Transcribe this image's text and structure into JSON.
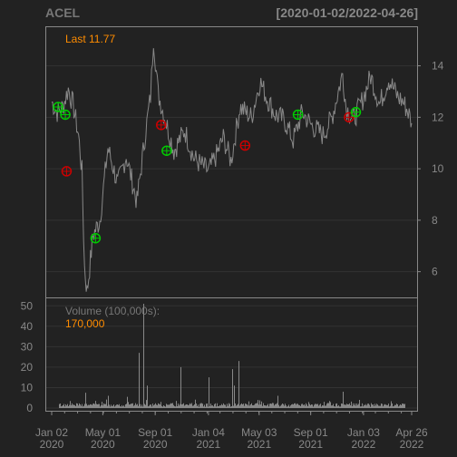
{
  "header": {
    "symbol": "ACEL",
    "date_range": "[2020-01-02/2022-04-26]"
  },
  "colors": {
    "background": "#222222",
    "panel_border": "#888888",
    "grid": "#333333",
    "text": "#888888",
    "price_line": "#888888",
    "accent": "#FF8C00",
    "buy_marker": "#00CC00",
    "sell_marker": "#CC0000"
  },
  "chart_data": [
    {
      "type": "line",
      "panel": "price",
      "annotation": "Last 11.77",
      "last": 11.77,
      "ylim": [
        5,
        15.5
      ],
      "y_ticks": [
        6,
        8,
        10,
        12,
        14
      ],
      "y_tick_labels": [
        "6",
        "8",
        "10",
        "12",
        "14"
      ],
      "x": [
        "2020-01-02",
        "2020-01-15",
        "2020-01-28",
        "2020-02-10",
        "2020-02-21",
        "2020-03-05",
        "2020-03-13",
        "2020-03-19",
        "2020-03-25",
        "2020-04-08",
        "2020-04-24",
        "2020-05-13",
        "2020-06-05",
        "2020-06-25",
        "2020-07-20",
        "2020-08-10",
        "2020-08-21",
        "2020-08-28",
        "2020-09-08",
        "2020-09-25",
        "2020-10-15",
        "2020-11-09",
        "2020-12-01",
        "2021-01-04",
        "2021-01-25",
        "2021-02-08",
        "2021-02-26",
        "2021-03-19",
        "2021-04-15",
        "2021-05-05",
        "2021-05-20",
        "2021-06-10",
        "2021-07-01",
        "2021-07-22",
        "2021-08-12",
        "2021-09-02",
        "2021-09-30",
        "2021-10-21",
        "2021-11-15",
        "2021-11-23",
        "2021-12-10",
        "2021-12-30",
        "2022-01-20",
        "2022-02-10",
        "2022-03-03",
        "2022-03-24",
        "2022-04-06",
        "2022-04-18",
        "2022-04-26"
      ],
      "values": [
        12.6,
        12.2,
        12.4,
        13.1,
        12.5,
        11.3,
        9.9,
        6.2,
        5.2,
        7.4,
        8.0,
        10.8,
        9.4,
        10.5,
        8.7,
        11.5,
        12.8,
        15.1,
        12.9,
        11.9,
        10.7,
        11.5,
        10.4,
        9.9,
        10.6,
        11.2,
        10.3,
        12.4,
        12.0,
        13.4,
        12.8,
        12.1,
        11.9,
        11.1,
        12.2,
        11.7,
        11.3,
        12.0,
        13.7,
        12.4,
        11.9,
        12.6,
        13.6,
        12.5,
        13.5,
        12.8,
        12.6,
        12.2,
        11.77
      ],
      "markers": [
        {
          "date": "2020-01-17",
          "value": 12.4,
          "type": "buy"
        },
        {
          "date": "2020-02-03",
          "value": 12.1,
          "type": "buy"
        },
        {
          "date": "2020-02-06",
          "value": 9.9,
          "type": "sell"
        },
        {
          "date": "2020-04-14",
          "value": 7.3,
          "type": "buy"
        },
        {
          "date": "2020-09-15",
          "value": 11.7,
          "type": "sell"
        },
        {
          "date": "2020-09-28",
          "value": 10.7,
          "type": "buy"
        },
        {
          "date": "2021-03-31",
          "value": 10.9,
          "type": "sell"
        },
        {
          "date": "2021-08-02",
          "value": 12.1,
          "type": "buy"
        },
        {
          "date": "2021-11-30",
          "value": 12.0,
          "type": "sell"
        },
        {
          "date": "2021-12-16",
          "value": 12.2,
          "type": "buy"
        }
      ]
    },
    {
      "type": "bar",
      "panel": "volume",
      "title": "Volume (100,000s):",
      "last": "170,000",
      "ylim": [
        0,
        51
      ],
      "y_ticks": [
        0,
        10,
        20,
        30,
        40,
        50
      ],
      "y_tick_labels": [
        "0",
        "10",
        "20",
        "30",
        "40",
        "50"
      ],
      "spikes": [
        {
          "date": "2020-03-20",
          "value": 7.5
        },
        {
          "date": "2020-05-13",
          "value": 6.0
        },
        {
          "date": "2020-06-26",
          "value": 5.5
        },
        {
          "date": "2020-07-25",
          "value": 27.0
        },
        {
          "date": "2020-08-03",
          "value": 51.0
        },
        {
          "date": "2020-08-12",
          "value": 11.0
        },
        {
          "date": "2020-10-30",
          "value": 20.0
        },
        {
          "date": "2021-01-04",
          "value": 15.0
        },
        {
          "date": "2021-03-01",
          "value": 19.0
        },
        {
          "date": "2021-03-05",
          "value": 11.0
        },
        {
          "date": "2021-03-15",
          "value": 23.0
        },
        {
          "date": "2021-06-15",
          "value": 6.0
        },
        {
          "date": "2021-11-15",
          "value": 8.0
        }
      ]
    }
  ],
  "x_axis": {
    "ticks": [
      {
        "date": "2020-01-02",
        "line1": "Jan 02",
        "line2": "2020"
      },
      {
        "date": "2020-05-01",
        "line1": "May 01",
        "line2": "2020"
      },
      {
        "date": "2020-09-01",
        "line1": "Sep 01",
        "line2": "2020"
      },
      {
        "date": "2021-01-04",
        "line1": "Jan 04",
        "line2": "2021"
      },
      {
        "date": "2021-05-03",
        "line1": "May 03",
        "line2": "2021"
      },
      {
        "date": "2021-09-01",
        "line1": "Sep 01",
        "line2": "2021"
      },
      {
        "date": "2022-01-03",
        "line1": "Jan 03",
        "line2": "2022"
      },
      {
        "date": "2022-04-26",
        "line1": "Apr 26",
        "line2": "2022"
      }
    ]
  }
}
